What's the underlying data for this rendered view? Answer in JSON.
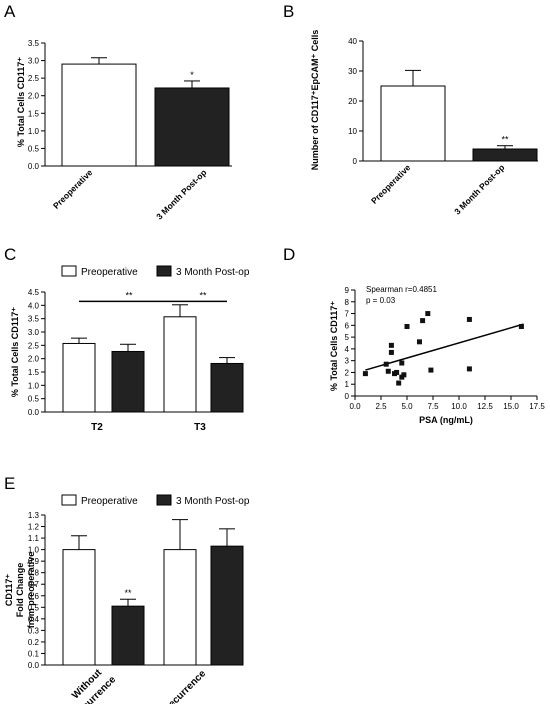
{
  "chart_data": [
    {
      "panel": "A",
      "type": "bar",
      "categories": [
        "Preoperative",
        "3 Month Post-op"
      ],
      "values": [
        2.9,
        2.22
      ],
      "errors": [
        0.18,
        0.2
      ],
      "fills": [
        "#ffffff",
        "#222222"
      ],
      "significance": [
        "",
        "*"
      ],
      "ylabel": "% Total Cells CD117⁺",
      "ylim": [
        0,
        3.5
      ],
      "yticks": [
        "0.0",
        "0.5",
        "1.0",
        "1.5",
        "2.0",
        "2.5",
        "3.0",
        "3.5"
      ]
    },
    {
      "panel": "B",
      "type": "bar",
      "categories": [
        "Preoperative",
        "3 Month Post-op"
      ],
      "values": [
        25,
        4
      ],
      "errors": [
        5.2,
        1.1
      ],
      "fills": [
        "#ffffff",
        "#222222"
      ],
      "significance": [
        "",
        "**"
      ],
      "ylabel": "Number of CD117⁺EpCAM⁺ Cells",
      "ylim": [
        0,
        40
      ],
      "yticks": [
        "0",
        "10",
        "20",
        "30",
        "40"
      ]
    },
    {
      "panel": "C",
      "type": "bar",
      "categories": [
        "T2",
        "T3"
      ],
      "series": [
        {
          "name": "Preoperative",
          "values": [
            2.57,
            3.57
          ],
          "errors": [
            0.2,
            0.45
          ],
          "fill": "#ffffff"
        },
        {
          "name": "3 Month Post-op",
          "values": [
            2.27,
            1.82
          ],
          "errors": [
            0.27,
            0.22
          ],
          "fill": "#222222"
        }
      ],
      "significance": [
        "**",
        "**"
      ],
      "ylabel": "% Total Cells CD117⁺",
      "ylim": [
        0,
        4.5
      ],
      "yticks": [
        "0.0",
        "0.5",
        "1.0",
        "1.5",
        "2.0",
        "2.5",
        "3.0",
        "3.5",
        "4.0",
        "4.5"
      ]
    },
    {
      "panel": "D",
      "type": "scatter",
      "annotation": [
        "Spearman r=0.4851",
        "p = 0.03"
      ],
      "x": [
        1.0,
        3.0,
        3.2,
        3.5,
        3.5,
        3.8,
        4.0,
        4.2,
        4.5,
        4.5,
        4.7,
        5.0,
        6.2,
        6.5,
        7.0,
        7.3,
        11.0,
        11.0,
        16.0
      ],
      "y": [
        1.9,
        2.7,
        2.1,
        3.7,
        4.3,
        1.9,
        2.0,
        1.1,
        1.6,
        2.8,
        1.8,
        5.9,
        4.6,
        6.4,
        7.0,
        2.2,
        6.5,
        2.3,
        5.9
      ],
      "fit": {
        "x": [
          1.0,
          16.2
        ],
        "y": [
          2.2,
          6.1
        ]
      },
      "xlabel": "PSA (ng/mL)",
      "ylabel": "% Total Cells CD117⁺",
      "xlim": [
        0,
        17.5
      ],
      "ylim": [
        0,
        9
      ],
      "xticks": [
        "0.0",
        "2.5",
        "5.0",
        "7.5",
        "10.0",
        "12.5",
        "15.0",
        "17.5"
      ],
      "yticks": [
        "0",
        "1",
        "2",
        "3",
        "4",
        "5",
        "6",
        "7",
        "8",
        "9"
      ]
    },
    {
      "panel": "E",
      "type": "bar",
      "categories": [
        "Without Recurrence",
        "Recurrence"
      ],
      "series": [
        {
          "name": "Preoperative",
          "values": [
            1.0,
            1.0
          ],
          "errors": [
            0.12,
            0.26
          ],
          "fill": "#ffffff"
        },
        {
          "name": "3 Month Post-op",
          "values": [
            0.51,
            1.03
          ],
          "errors": [
            0.06,
            0.15
          ],
          "fill": "#222222"
        }
      ],
      "significance": [
        "**",
        ""
      ],
      "ylabel": "CD117⁺ Fold Change from preoperative",
      "ylim": [
        0,
        1.3
      ],
      "yticks": [
        "0.0",
        "0.1",
        "0.2",
        "0.3",
        "0.4",
        "0.5",
        "0.6",
        "0.7",
        "0.8",
        "0.9",
        "1.0",
        "1.1",
        "1.2",
        "1.3"
      ]
    }
  ],
  "panel_letters": [
    "A",
    "B",
    "C",
    "D",
    "E"
  ],
  "legend": {
    "pre": "Preoperative",
    "post": "3 Month Post-op"
  },
  "labels": {
    "a_ylabel": "% Total Cells CD117⁺",
    "b_ylabel": "Number of CD117⁺EpCAM⁺ Cells",
    "c_ylabel": "% Total Cells CD117⁺",
    "d_ylabel": "% Total Cells CD117⁺",
    "d_xlabel": "PSA (ng/mL)",
    "e_ylabel_1": "CD117⁺",
    "e_ylabel_2": "Fold Change",
    "e_ylabel_3": "from preoperative",
    "pre": "Preoperative",
    "post": "3 Month Post-op",
    "t2": "T2",
    "t3": "T3",
    "without_1": "Without",
    "without_2": "Recurrence",
    "recurrence": "Recurrence"
  }
}
